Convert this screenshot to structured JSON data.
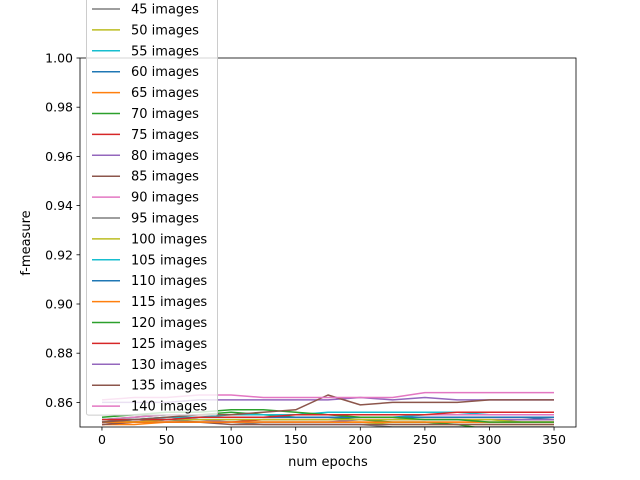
{
  "chart_data": {
    "type": "line",
    "title": "",
    "xlabel": "num epochs",
    "ylabel": "f-measure",
    "xlim": [
      -17,
      367
    ],
    "ylim": [
      0.85,
      1.0
    ],
    "xticks": [
      0,
      50,
      100,
      150,
      200,
      250,
      300,
      350
    ],
    "yticks": [
      "0.86",
      "0.88",
      "0.90",
      "0.92",
      "0.94",
      "0.96",
      "0.98",
      "1.00"
    ],
    "grid": false,
    "legend_position": "upper-left (extends above plot area)",
    "x": [
      0,
      25,
      50,
      75,
      100,
      125,
      150,
      175,
      200,
      225,
      250,
      275,
      300,
      325,
      350
    ],
    "series": [
      {
        "name": "45 images",
        "color": "#7f7f7f",
        "values": [
          0.852,
          0.852,
          0.853,
          0.852,
          0.852,
          0.851,
          0.851,
          0.851,
          0.851,
          0.85,
          0.85,
          0.85,
          0.85,
          0.85,
          0.85
        ]
      },
      {
        "name": "50 images",
        "color": "#bcbd22",
        "values": [
          0.853,
          0.852,
          0.852,
          0.852,
          0.852,
          0.852,
          0.852,
          0.852,
          0.852,
          0.851,
          0.851,
          0.851,
          0.851,
          0.851,
          0.851
        ]
      },
      {
        "name": "55 images",
        "color": "#17becf",
        "values": [
          0.853,
          0.853,
          0.854,
          0.854,
          0.854,
          0.854,
          0.854,
          0.854,
          0.854,
          0.854,
          0.855,
          0.855,
          0.856,
          0.856,
          0.856
        ]
      },
      {
        "name": "60 images",
        "color": "#1f77b4",
        "values": [
          0.852,
          0.852,
          0.853,
          0.853,
          0.853,
          0.853,
          0.853,
          0.853,
          0.853,
          0.853,
          0.853,
          0.853,
          0.853,
          0.853,
          0.854
        ]
      },
      {
        "name": "65 images",
        "color": "#ff7f0e",
        "values": [
          0.851,
          0.851,
          0.852,
          0.852,
          0.852,
          0.852,
          0.852,
          0.852,
          0.852,
          0.852,
          0.852,
          0.852,
          0.852,
          0.852,
          0.852
        ]
      },
      {
        "name": "70 images",
        "color": "#2ca02c",
        "values": [
          0.853,
          0.854,
          0.855,
          0.855,
          0.856,
          0.855,
          0.854,
          0.854,
          0.853,
          0.852,
          0.852,
          0.851,
          0.849,
          0.849,
          0.849
        ]
      },
      {
        "name": "75 images",
        "color": "#d62728",
        "values": [
          0.851,
          0.852,
          0.852,
          0.852,
          0.852,
          0.853,
          0.853,
          0.853,
          0.853,
          0.853,
          0.853,
          0.853,
          0.853,
          0.853,
          0.853
        ]
      },
      {
        "name": "80 images",
        "color": "#9467bd",
        "values": [
          0.852,
          0.853,
          0.853,
          0.853,
          0.852,
          0.852,
          0.852,
          0.852,
          0.853,
          0.853,
          0.853,
          0.853,
          0.853,
          0.853,
          0.853
        ]
      },
      {
        "name": "85 images",
        "color": "#8c564b",
        "values": [
          0.851,
          0.852,
          0.852,
          0.852,
          0.851,
          0.851,
          0.851,
          0.851,
          0.851,
          0.851,
          0.851,
          0.851,
          0.851,
          0.851,
          0.851
        ]
      },
      {
        "name": "90 images",
        "color": "#e377c2",
        "values": [
          0.853,
          0.854,
          0.855,
          0.855,
          0.855,
          0.855,
          0.855,
          0.855,
          0.855,
          0.855,
          0.855,
          0.855,
          0.855,
          0.855,
          0.855
        ]
      },
      {
        "name": "95 images",
        "color": "#7f7f7f",
        "values": [
          0.853,
          0.853,
          0.853,
          0.854,
          0.854,
          0.854,
          0.854,
          0.854,
          0.854,
          0.854,
          0.854,
          0.854,
          0.854,
          0.854,
          0.854
        ]
      },
      {
        "name": "100 images",
        "color": "#bcbd22",
        "values": [
          0.852,
          0.852,
          0.853,
          0.853,
          0.853,
          0.853,
          0.853,
          0.853,
          0.853,
          0.853,
          0.853,
          0.853,
          0.853,
          0.852,
          0.852
        ]
      },
      {
        "name": "105 images",
        "color": "#17becf",
        "values": [
          0.853,
          0.853,
          0.854,
          0.854,
          0.855,
          0.855,
          0.855,
          0.856,
          0.856,
          0.856,
          0.856,
          0.856,
          0.856,
          0.856,
          0.856
        ]
      },
      {
        "name": "110 images",
        "color": "#1f77b4",
        "values": [
          0.852,
          0.853,
          0.853,
          0.854,
          0.854,
          0.854,
          0.854,
          0.854,
          0.854,
          0.854,
          0.854,
          0.854,
          0.854,
          0.854,
          0.854
        ]
      },
      {
        "name": "115 images",
        "color": "#ff7f0e",
        "values": [
          0.852,
          0.852,
          0.852,
          0.852,
          0.852,
          0.852,
          0.852,
          0.852,
          0.852,
          0.852,
          0.852,
          0.852,
          0.852,
          0.852,
          0.852
        ]
      },
      {
        "name": "120 images",
        "color": "#2ca02c",
        "values": [
          0.854,
          0.855,
          0.856,
          0.856,
          0.857,
          0.857,
          0.856,
          0.855,
          0.854,
          0.854,
          0.853,
          0.853,
          0.852,
          0.852,
          0.852
        ]
      },
      {
        "name": "125 images",
        "color": "#d62728",
        "values": [
          0.853,
          0.853,
          0.853,
          0.854,
          0.854,
          0.854,
          0.855,
          0.855,
          0.855,
          0.855,
          0.855,
          0.856,
          0.856,
          0.856,
          0.856
        ]
      },
      {
        "name": "130 images",
        "color": "#9467bd",
        "values": [
          0.86,
          0.86,
          0.86,
          0.861,
          0.861,
          0.861,
          0.861,
          0.861,
          0.862,
          0.861,
          0.862,
          0.861,
          0.861,
          0.861,
          0.861
        ]
      },
      {
        "name": "135 images",
        "color": "#8c564b",
        "values": [
          0.852,
          0.853,
          0.854,
          0.855,
          0.855,
          0.856,
          0.857,
          0.863,
          0.859,
          0.86,
          0.86,
          0.86,
          0.861,
          0.861,
          0.861
        ]
      },
      {
        "name": "140 images",
        "color": "#e377c2",
        "values": [
          0.861,
          0.862,
          0.862,
          0.863,
          0.863,
          0.862,
          0.862,
          0.862,
          0.862,
          0.862,
          0.864,
          0.864,
          0.864,
          0.864,
          0.864
        ]
      }
    ]
  }
}
